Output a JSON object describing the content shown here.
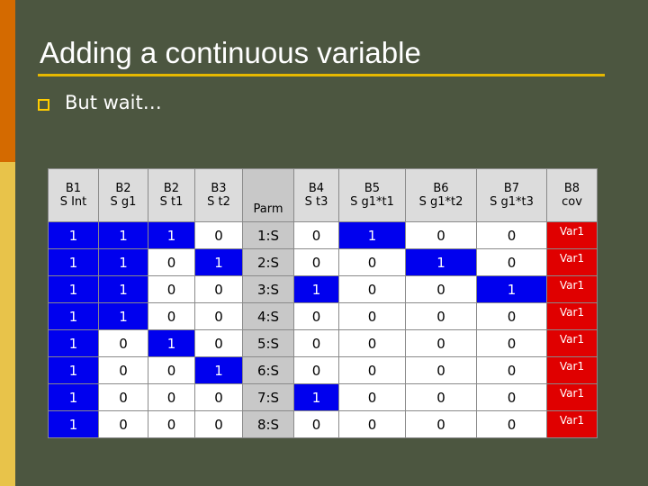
{
  "title": "Adding a continuous variable",
  "bullet": "But wait…",
  "colors": {
    "accent": "#e6b800",
    "highlight": "#0000ee",
    "cov": "#e00000",
    "parm": "#c8c8c8"
  },
  "table": {
    "headers": [
      [
        "B1",
        "S Int"
      ],
      [
        "B2",
        "S g1"
      ],
      [
        "B2",
        "S t1"
      ],
      [
        "B3",
        "S t2"
      ],
      [
        "",
        "Parm"
      ],
      [
        "B4",
        "S t3"
      ],
      [
        "B5",
        "S g1*t1"
      ],
      [
        "B6",
        "S g1*t2"
      ],
      [
        "B7",
        "S g1*t3"
      ],
      [
        "B8",
        "cov"
      ]
    ],
    "rows": [
      [
        "1",
        "1",
        "1",
        "0",
        "1:S",
        "0",
        "1",
        "0",
        "0",
        "Var1"
      ],
      [
        "1",
        "1",
        "0",
        "1",
        "2:S",
        "0",
        "0",
        "1",
        "0",
        "Var1"
      ],
      [
        "1",
        "1",
        "0",
        "0",
        "3:S",
        "1",
        "0",
        "0",
        "1",
        "Var1"
      ],
      [
        "1",
        "1",
        "0",
        "0",
        "4:S",
        "0",
        "0",
        "0",
        "0",
        "Var1"
      ],
      [
        "1",
        "0",
        "1",
        "0",
        "5:S",
        "0",
        "0",
        "0",
        "0",
        "Var1"
      ],
      [
        "1",
        "0",
        "0",
        "1",
        "6:S",
        "0",
        "0",
        "0",
        "0",
        "Var1"
      ],
      [
        "1",
        "0",
        "0",
        "0",
        "7:S",
        "1",
        "0",
        "0",
        "0",
        "Var1"
      ],
      [
        "1",
        "0",
        "0",
        "0",
        "8:S",
        "0",
        "0",
        "0",
        "0",
        "Var1"
      ]
    ],
    "highlighted": [
      [
        0,
        0
      ],
      [
        0,
        1
      ],
      [
        0,
        2
      ],
      [
        0,
        6
      ],
      [
        1,
        0
      ],
      [
        1,
        1
      ],
      [
        1,
        3
      ],
      [
        1,
        7
      ],
      [
        2,
        0
      ],
      [
        2,
        1
      ],
      [
        2,
        5
      ],
      [
        2,
        8
      ],
      [
        3,
        0
      ],
      [
        3,
        1
      ],
      [
        4,
        0
      ],
      [
        4,
        2
      ],
      [
        5,
        0
      ],
      [
        5,
        3
      ],
      [
        6,
        0
      ],
      [
        6,
        5
      ],
      [
        7,
        0
      ]
    ],
    "col_widths": [
      55,
      54,
      51,
      52,
      56,
      49,
      73,
      78,
      77,
      55
    ]
  }
}
